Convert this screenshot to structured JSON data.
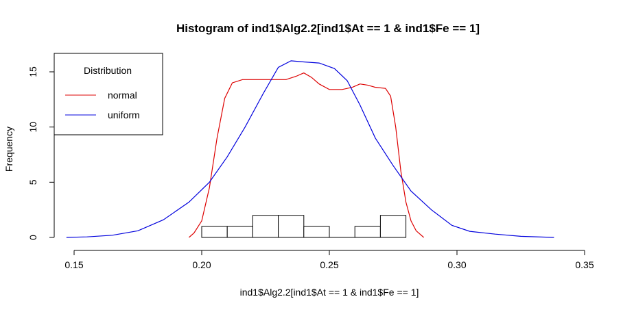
{
  "chart_data": {
    "type": "histogram",
    "title": "Histogram of ind1$Alg2.2[ind1$At == 1 & ind1$Fe == 1]",
    "xlabel": "ind1$Alg2.2[ind1$At == 1 & ind1$Fe == 1]",
    "ylabel": "Frequency",
    "xlim": [
      0.15,
      0.35
    ],
    "ylim": [
      0,
      15
    ],
    "x_ticks": [
      "0.15",
      "0.20",
      "0.25",
      "0.30",
      "0.35"
    ],
    "y_ticks": [
      "0",
      "5",
      "10",
      "15"
    ],
    "grid": false,
    "bins": [
      {
        "x0": 0.2,
        "x1": 0.21,
        "count": 1
      },
      {
        "x0": 0.21,
        "x1": 0.22,
        "count": 1
      },
      {
        "x0": 0.22,
        "x1": 0.23,
        "count": 2
      },
      {
        "x0": 0.23,
        "x1": 0.24,
        "count": 2
      },
      {
        "x0": 0.24,
        "x1": 0.25,
        "count": 1
      },
      {
        "x0": 0.25,
        "x1": 0.26,
        "count": 0
      },
      {
        "x0": 0.26,
        "x1": 0.27,
        "count": 1
      },
      {
        "x0": 0.27,
        "x1": 0.28,
        "count": 2
      }
    ],
    "legend": {
      "title": "Distribution",
      "placement": "top-left",
      "entries": [
        {
          "label": "normal",
          "color": "#dd0000"
        },
        {
          "label": "uniform",
          "color": "#0000dd"
        }
      ]
    },
    "series": [
      {
        "name": "normal",
        "color": "#dd0000",
        "points": [
          [
            0.195,
            0.0
          ],
          [
            0.197,
            0.4
          ],
          [
            0.2,
            1.5
          ],
          [
            0.203,
            4.5
          ],
          [
            0.206,
            9.0
          ],
          [
            0.209,
            12.6
          ],
          [
            0.212,
            14.0
          ],
          [
            0.216,
            14.3
          ],
          [
            0.222,
            14.3
          ],
          [
            0.228,
            14.3
          ],
          [
            0.233,
            14.3
          ],
          [
            0.237,
            14.6
          ],
          [
            0.24,
            14.9
          ],
          [
            0.243,
            14.5
          ],
          [
            0.246,
            13.9
          ],
          [
            0.25,
            13.4
          ],
          [
            0.255,
            13.4
          ],
          [
            0.259,
            13.6
          ],
          [
            0.262,
            13.9
          ],
          [
            0.265,
            13.8
          ],
          [
            0.268,
            13.6
          ],
          [
            0.272,
            13.5
          ],
          [
            0.274,
            12.8
          ],
          [
            0.276,
            10.0
          ],
          [
            0.278,
            6.0
          ],
          [
            0.28,
            3.2
          ],
          [
            0.282,
            1.5
          ],
          [
            0.284,
            0.6
          ],
          [
            0.287,
            0.0
          ]
        ]
      },
      {
        "name": "uniform",
        "color": "#0000dd",
        "points": [
          [
            0.147,
            0.0
          ],
          [
            0.155,
            0.05
          ],
          [
            0.165,
            0.2
          ],
          [
            0.175,
            0.6
          ],
          [
            0.185,
            1.6
          ],
          [
            0.195,
            3.2
          ],
          [
            0.203,
            5.0
          ],
          [
            0.21,
            7.3
          ],
          [
            0.217,
            10.0
          ],
          [
            0.224,
            13.0
          ],
          [
            0.23,
            15.4
          ],
          [
            0.235,
            16.0
          ],
          [
            0.24,
            15.9
          ],
          [
            0.246,
            15.8
          ],
          [
            0.252,
            15.3
          ],
          [
            0.257,
            14.2
          ],
          [
            0.262,
            12.0
          ],
          [
            0.268,
            9.0
          ],
          [
            0.275,
            6.5
          ],
          [
            0.282,
            4.2
          ],
          [
            0.29,
            2.5
          ],
          [
            0.298,
            1.1
          ],
          [
            0.305,
            0.55
          ],
          [
            0.315,
            0.3
          ],
          [
            0.325,
            0.1
          ],
          [
            0.338,
            0.0
          ]
        ]
      }
    ]
  }
}
